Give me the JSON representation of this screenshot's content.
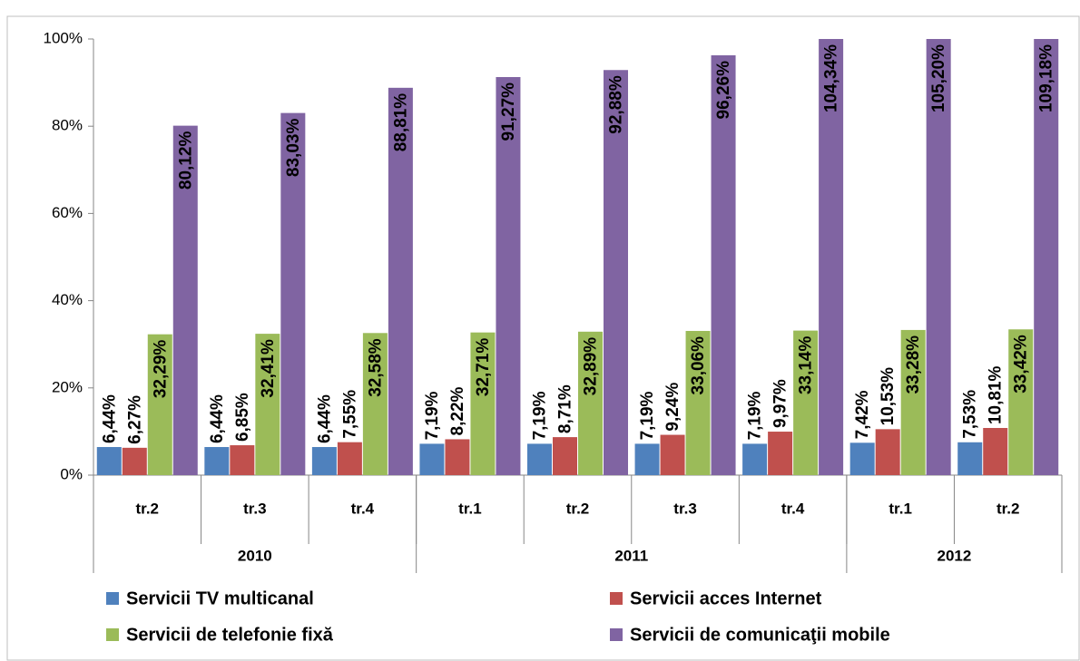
{
  "chart_data": {
    "type": "bar",
    "groups": [
      {
        "label": "2010",
        "categories": [
          "tr.2",
          "tr.3",
          "tr.4"
        ]
      },
      {
        "label": "2011",
        "categories": [
          "tr.1",
          "tr.2",
          "tr.3",
          "tr.4"
        ]
      },
      {
        "label": "2012",
        "categories": [
          "tr.1",
          "tr.2"
        ]
      }
    ],
    "series": [
      {
        "name": "Servicii TV multicanal",
        "color": "#4f81bd",
        "values": [
          6.44,
          6.44,
          6.44,
          7.19,
          7.19,
          7.19,
          7.19,
          7.42,
          7.53
        ],
        "value_labels": [
          "6,44%",
          "6,44%",
          "6,44%",
          "7,19%",
          "7,19%",
          "7,19%",
          "7,19%",
          "7,42%",
          "7,53%"
        ]
      },
      {
        "name": "Servicii acces Internet",
        "color": "#c0504d",
        "values": [
          6.27,
          6.85,
          7.55,
          8.22,
          8.71,
          9.24,
          9.97,
          10.53,
          10.81
        ],
        "value_labels": [
          "6,27%",
          "6,85%",
          "7,55%",
          "8,22%",
          "8,71%",
          "9,24%",
          "9,97%",
          "10,53%",
          "10,81%"
        ]
      },
      {
        "name": "Servicii de telefonie fixă",
        "color": "#9bbb59",
        "values": [
          32.29,
          32.41,
          32.58,
          32.71,
          32.89,
          33.06,
          33.14,
          33.28,
          33.42
        ],
        "value_labels": [
          "32,29%",
          "32,41%",
          "32,58%",
          "32,71%",
          "32,89%",
          "33,06%",
          "33,14%",
          "33,28%",
          "33,42%"
        ]
      },
      {
        "name": "Servicii de comunicaţii mobile",
        "color": "#8064a2",
        "values": [
          80.12,
          83.03,
          88.81,
          91.27,
          92.88,
          96.26,
          104.34,
          105.2,
          109.18
        ],
        "value_labels": [
          "80,12%",
          "83,03%",
          "88,81%",
          "91,27%",
          "92,88%",
          "96,26%",
          "104,34%",
          "105,20%",
          "109,18%"
        ]
      }
    ],
    "ylim": [
      0,
      100
    ],
    "yticks": [
      {
        "value": 0,
        "label": "0%"
      },
      {
        "value": 20,
        "label": "20%"
      },
      {
        "value": 40,
        "label": "40%"
      },
      {
        "value": 60,
        "label": "60%"
      },
      {
        "value": 80,
        "label": "80%"
      },
      {
        "value": 100,
        "label": "100%"
      }
    ],
    "grid": false,
    "legend": "bottom"
  }
}
